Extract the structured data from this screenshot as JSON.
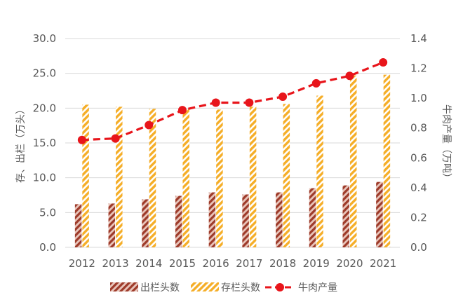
{
  "chart_data": {
    "type": "bar",
    "categories": [
      "2012",
      "2013",
      "2014",
      "2015",
      "2016",
      "2017",
      "2018",
      "2019",
      "2020",
      "2021"
    ],
    "series": [
      {
        "name": "出栏头数",
        "kind": "bar",
        "axis": "left",
        "values": [
          6.2,
          6.3,
          6.9,
          7.4,
          7.9,
          7.6,
          7.9,
          8.5,
          8.9,
          9.4
        ]
      },
      {
        "name": "存栏头数",
        "kind": "bar",
        "axis": "left",
        "values": [
          20.5,
          20.2,
          19.9,
          19.9,
          19.8,
          20.2,
          20.6,
          21.8,
          24.7,
          24.8
        ]
      },
      {
        "name": "牛肉产量",
        "kind": "line",
        "axis": "right",
        "values": [
          0.72,
          0.73,
          0.82,
          0.92,
          0.97,
          0.97,
          1.01,
          1.1,
          1.15,
          1.24
        ]
      }
    ],
    "y_left": {
      "label": "存、出栏（万头）",
      "min": 0,
      "max": 30,
      "step": 5,
      "ticks": [
        "0.0",
        "5.0",
        "10.0",
        "15.0",
        "20.0",
        "25.0",
        "30.0"
      ]
    },
    "y_right": {
      "label": "牛肉产量（万吨）",
      "min": 0,
      "max": 1.4,
      "step": 0.2,
      "ticks": [
        "0.0",
        "0.2",
        "0.4",
        "0.6",
        "0.8",
        "1.0",
        "1.2",
        "1.4"
      ]
    },
    "grid": true,
    "legend": "bottom",
    "colors": {
      "bar1": "#9E3B2A",
      "bar1_bg": "#E9C6BC",
      "bar2": "#F5AE28",
      "bar2_bg": "#FFFFFF",
      "line": "#E8151B",
      "grid": "#D9D9D9",
      "text": "#595959"
    }
  }
}
